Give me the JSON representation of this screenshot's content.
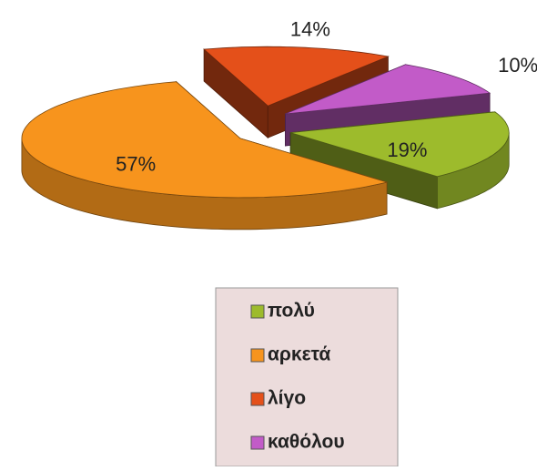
{
  "chart_data": {
    "type": "pie3d",
    "categories": [
      "πολύ",
      "αρκετά",
      "λίγο",
      "καθόλου"
    ],
    "values": [
      19,
      57,
      14,
      10
    ],
    "value_labels": [
      "19%",
      "57%",
      "14%",
      "10%"
    ],
    "colors": [
      "#9dbb2c",
      "#f7941d",
      "#e4501a",
      "#c25bc8"
    ],
    "legend": "bottom"
  }
}
